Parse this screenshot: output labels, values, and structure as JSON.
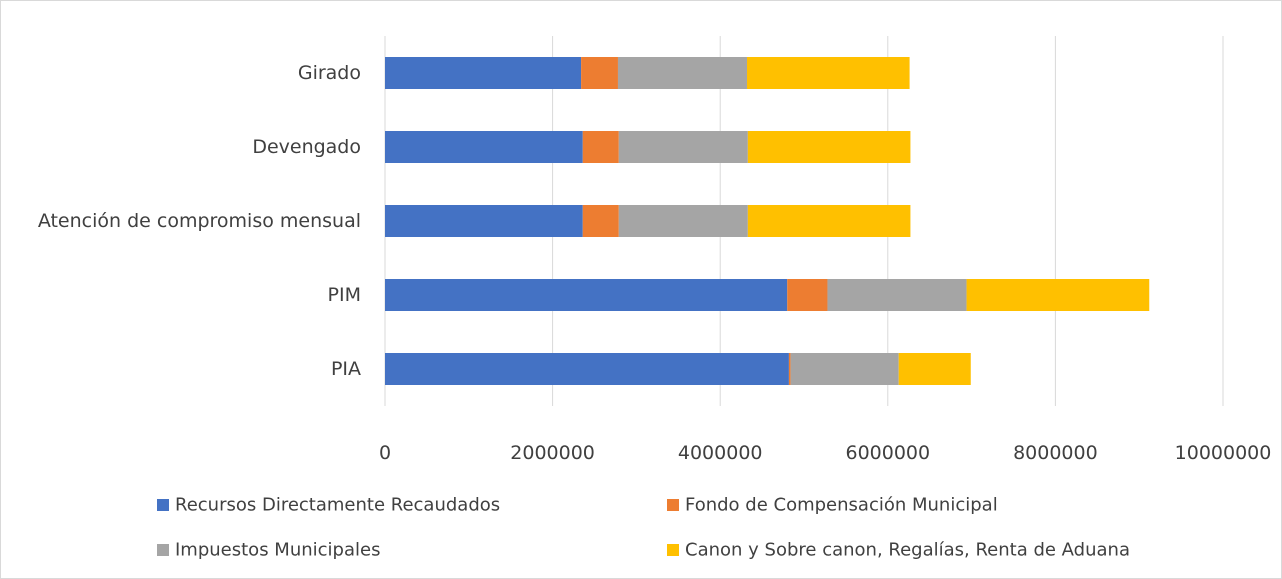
{
  "chart_data": {
    "type": "bar",
    "orientation": "horizontal",
    "stacked": true,
    "categories": [
      "PIA",
      "PIM",
      "Atención de compromiso mensual",
      "Devengado",
      "Girado"
    ],
    "series": [
      {
        "name": "Recursos Directamente Recaudados",
        "color": "#4472C4",
        "values": [
          4820000,
          4800000,
          2360000,
          2360000,
          2340000
        ]
      },
      {
        "name": "Fondo de Compensación Municipal",
        "color": "#ED7D31",
        "values": [
          20000,
          480000,
          430000,
          430000,
          440000
        ]
      },
      {
        "name": "Impuestos Municipales",
        "color": "#A5A5A5",
        "values": [
          1290000,
          1660000,
          1540000,
          1540000,
          1540000
        ]
      },
      {
        "name": "Canon y Sobre canon, Regalías, Renta de Aduana",
        "color": "#FFC000",
        "values": [
          860000,
          2180000,
          1940000,
          1940000,
          1940000
        ]
      }
    ],
    "xlim": [
      0,
      10000000
    ],
    "xticks": [
      0,
      2000000,
      4000000,
      6000000,
      8000000,
      10000000
    ],
    "tick_labels": [
      "0",
      "2000000",
      "4000000",
      "6000000",
      "8000000",
      "10000000"
    ],
    "grid": true,
    "legend": "bottom"
  }
}
